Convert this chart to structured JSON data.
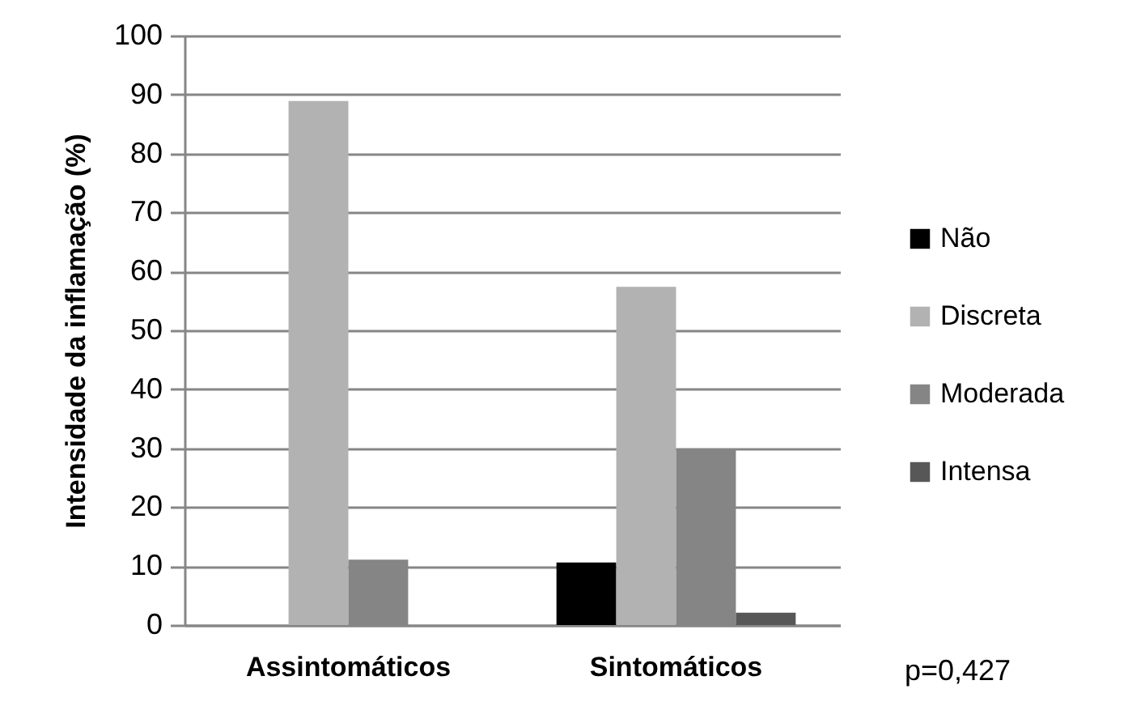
{
  "chart_data": {
    "type": "bar",
    "categories": [
      "Assintomáticos",
      "Sintomáticos"
    ],
    "series": [
      {
        "name": "Não",
        "color": "#000000",
        "values": [
          0,
          10.6
        ]
      },
      {
        "name": "Discreta",
        "color": "#b2b2b2",
        "values": [
          88.9,
          57.4
        ]
      },
      {
        "name": "Moderada",
        "color": "#858585",
        "values": [
          11.1,
          29.8
        ]
      },
      {
        "name": "Intensa",
        "color": "#575757",
        "values": [
          0,
          2.1
        ]
      }
    ],
    "ylabel": "Intensidade da inflamação (%)",
    "ylim": [
      0,
      100
    ],
    "yticks": [
      0,
      10,
      20,
      30,
      40,
      50,
      60,
      70,
      80,
      90,
      100
    ],
    "grid": "y",
    "legend": "right",
    "annotations": [
      "p=0,427"
    ]
  }
}
